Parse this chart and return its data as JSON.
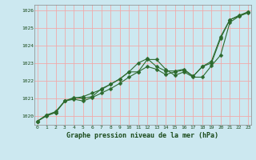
{
  "title": "",
  "xlabel": "Graphe pression niveau de la mer (hPa)",
  "ylabel": "",
  "bg_color": "#cce8f0",
  "plot_bg_color": "#cce8f0",
  "grid_color": "#f0aaaa",
  "line_color": "#2d6a2d",
  "xlim": [
    -0.3,
    23.3
  ],
  "ylim": [
    1019.5,
    1026.3
  ],
  "yticks": [
    1020,
    1021,
    1022,
    1023,
    1024,
    1025,
    1026
  ],
  "xticks": [
    0,
    1,
    2,
    3,
    4,
    5,
    6,
    7,
    8,
    9,
    10,
    11,
    12,
    13,
    14,
    15,
    16,
    17,
    18,
    19,
    20,
    21,
    22,
    23
  ],
  "series1_x": [
    0,
    1,
    2,
    3,
    4,
    5,
    6,
    7,
    8,
    9,
    10,
    11,
    12,
    13,
    14,
    15,
    16,
    17,
    18,
    19,
    20,
    21,
    22,
    23
  ],
  "series1_y": [
    1019.7,
    1020.0,
    1020.2,
    1020.85,
    1020.95,
    1020.85,
    1021.05,
    1021.3,
    1021.55,
    1021.85,
    1022.2,
    1022.5,
    1023.2,
    1023.2,
    1022.65,
    1022.3,
    1022.5,
    1022.2,
    1022.2,
    1022.85,
    1023.45,
    1025.3,
    1025.65,
    1025.85
  ],
  "series2_x": [
    0,
    1,
    2,
    3,
    4,
    5,
    6,
    7,
    8,
    9,
    10,
    11,
    12,
    13,
    14,
    15,
    16,
    17,
    18,
    19,
    20,
    21,
    22,
    23
  ],
  "series2_y": [
    1019.7,
    1020.05,
    1020.2,
    1020.85,
    1021.0,
    1021.1,
    1021.3,
    1021.5,
    1021.8,
    1022.1,
    1022.5,
    1023.0,
    1023.25,
    1022.8,
    1022.55,
    1022.55,
    1022.65,
    1022.25,
    1022.8,
    1023.0,
    1024.4,
    1025.45,
    1025.65,
    1025.9
  ],
  "series3_x": [
    0,
    1,
    2,
    3,
    4,
    5,
    6,
    7,
    8,
    9,
    10,
    11,
    12,
    13,
    14,
    15,
    16,
    17,
    18,
    19,
    20,
    21,
    22,
    23
  ],
  "series3_y": [
    1019.7,
    1020.05,
    1020.25,
    1020.85,
    1021.05,
    1021.0,
    1021.1,
    1021.55,
    1021.8,
    1022.1,
    1022.5,
    1022.5,
    1022.8,
    1022.65,
    1022.35,
    1022.5,
    1022.6,
    1022.25,
    1022.8,
    1023.1,
    1024.5,
    1025.45,
    1025.7,
    1025.9
  ]
}
